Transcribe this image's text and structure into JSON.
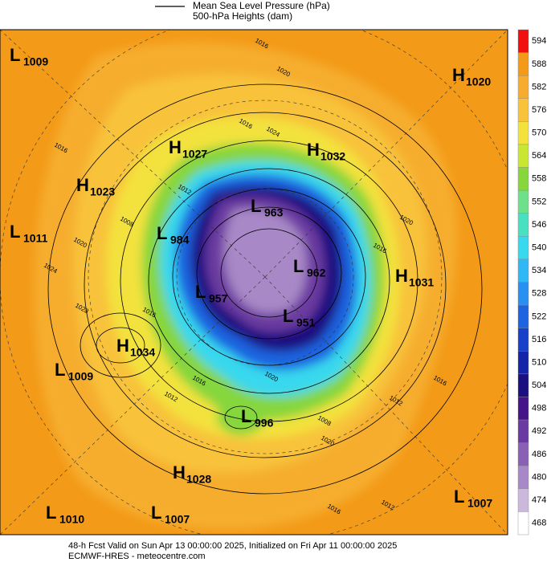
{
  "legend": {
    "line_label": "Mean Sea Level Pressure (hPa)",
    "fill_label": "500-hPa Heights (dam)"
  },
  "centers": [
    {
      "kind": "L",
      "value": 1009
    },
    {
      "kind": "H",
      "value": 1020
    },
    {
      "kind": "H",
      "value": 1027
    },
    {
      "kind": "H",
      "value": 1032
    },
    {
      "kind": "H",
      "value": 1023
    },
    {
      "kind": "L",
      "value": 963
    },
    {
      "kind": "L",
      "value": 1011
    },
    {
      "kind": "L",
      "value": 984
    },
    {
      "kind": "L",
      "value": 962
    },
    {
      "kind": "H",
      "value": 1031
    },
    {
      "kind": "L",
      "value": 957
    },
    {
      "kind": "L",
      "value": 951
    },
    {
      "kind": "H",
      "value": 1034
    },
    {
      "kind": "L",
      "value": 1009
    },
    {
      "kind": "L",
      "value": 996
    },
    {
      "kind": "H",
      "value": 1028
    },
    {
      "kind": "L",
      "value": 1007
    },
    {
      "kind": "L",
      "value": 1010
    },
    {
      "kind": "L",
      "value": 1007
    }
  ],
  "contour_labels": [
    1016,
    1020,
    1016,
    1024,
    1016,
    1012,
    1008,
    1020,
    1024,
    1028,
    1016,
    1012,
    1016,
    1020,
    1016,
    1020,
    1016,
    1012,
    1020,
    1016,
    1012,
    1008
  ],
  "colorbar": {
    "ticks": [
      594,
      588,
      582,
      576,
      570,
      564,
      558,
      552,
      546,
      540,
      534,
      528,
      522,
      516,
      510,
      504,
      498,
      492,
      486,
      480,
      474,
      468
    ],
    "colors": [
      "#f01010",
      "#f39a18",
      "#f6ad2e",
      "#f8c23a",
      "#f3e23c",
      "#c9e632",
      "#86d63c",
      "#6fe08a",
      "#48e0c0",
      "#38d8ee",
      "#30b8f6",
      "#2890f0",
      "#1e64e0",
      "#1840c8",
      "#1424a8",
      "#1a1080",
      "#441488",
      "#6a3aa0",
      "#8a60b4",
      "#a888c6",
      "#ccb8dc",
      "#ffffff"
    ]
  },
  "footer": {
    "line1": "48-h Fcst Valid on Sun Apr 13 00:00:00 2025, Initialized on Fri Apr 11 00:00:00 2025",
    "line2": "ECMWF-HRES - meteocentre.com"
  }
}
